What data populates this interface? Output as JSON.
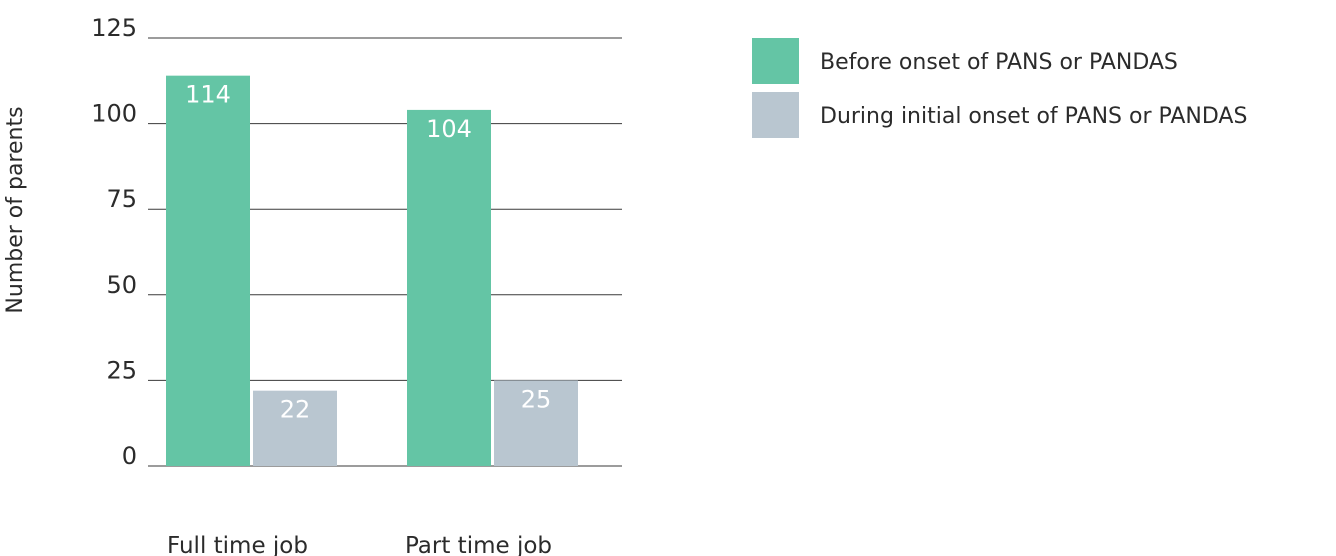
{
  "chart_data": {
    "type": "bar",
    "categories": [
      "Full time job",
      "Part time job"
    ],
    "series": [
      {
        "name": "Before onset of PANS or PANDAS",
        "values": [
          114,
          104
        ],
        "color": "#64c5a5"
      },
      {
        "name": "During initial onset of PANS or PANDAS",
        "values": [
          22,
          25
        ],
        "color": "#b9c6d0"
      }
    ],
    "ylabel": "Number of parents",
    "xlabel": "",
    "ylim": [
      0,
      125
    ],
    "yticks": [
      0,
      25,
      50,
      75,
      100,
      125
    ],
    "grid": true,
    "legend_position": "top-right",
    "data_labels": true
  }
}
